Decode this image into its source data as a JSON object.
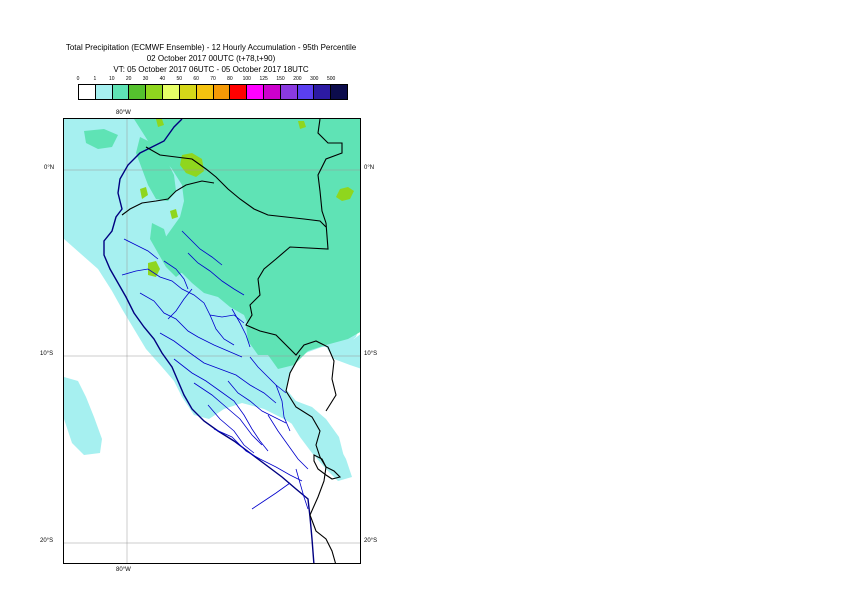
{
  "header": {
    "title_line1": "Total Precipitation (ECMWF Ensemble) - 12 Hourly Accumulation - 95th Percentile",
    "title_line2": "02 October 2017 00UTC (t+78,t+90)",
    "title_line3": "VT: 05 October 2017 06UTC - 05 October 2017 18UTC"
  },
  "legend": {
    "thresholds": [
      "0",
      "1",
      "10",
      "20",
      "30",
      "40",
      "50",
      "60",
      "70",
      "80",
      "100",
      "125",
      "150",
      "200",
      "300",
      "500"
    ],
    "colors": [
      "#ffffff",
      "#a6f0f0",
      "#5fe3b5",
      "#55c12e",
      "#8fd61e",
      "#e7ff66",
      "#d5d719",
      "#f5c30f",
      "#f59a06",
      "#ff0000",
      "#ff00ff",
      "#cc00cc",
      "#8a3ae0",
      "#5a3ff0",
      "#2c1aa3",
      "#0c0c4c"
    ]
  },
  "map": {
    "lon_labels": {
      "top": "80°W",
      "bottom": "80°W"
    },
    "lat_labels": [
      "0°N",
      "10°S",
      "20°S"
    ],
    "colors": {
      "light": "#a6f0f0",
      "medium": "#5fe3b5",
      "heavy": "#8fd61e",
      "country_border": "#000000",
      "region_border": "#0000cc",
      "coast": "#000080",
      "gridline": "#999999"
    }
  }
}
